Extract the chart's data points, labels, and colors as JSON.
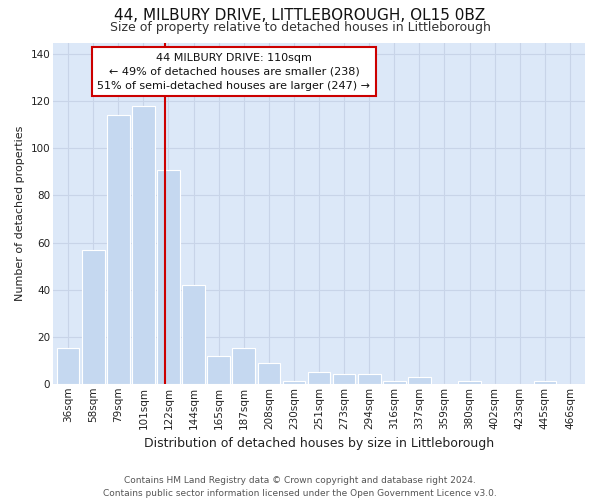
{
  "title": "44, MILBURY DRIVE, LITTLEBOROUGH, OL15 0BZ",
  "subtitle": "Size of property relative to detached houses in Littleborough",
  "xlabel": "Distribution of detached houses by size in Littleborough",
  "ylabel": "Number of detached properties",
  "categories": [
    "36sqm",
    "58sqm",
    "79sqm",
    "101sqm",
    "122sqm",
    "144sqm",
    "165sqm",
    "187sqm",
    "208sqm",
    "230sqm",
    "251sqm",
    "273sqm",
    "294sqm",
    "316sqm",
    "337sqm",
    "359sqm",
    "380sqm",
    "402sqm",
    "423sqm",
    "445sqm",
    "466sqm"
  ],
  "values": [
    15,
    57,
    114,
    118,
    91,
    42,
    12,
    15,
    9,
    1,
    5,
    4,
    4,
    1,
    3,
    0,
    1,
    0,
    0,
    1,
    0
  ],
  "bar_color": "#c5d8f0",
  "bar_edge_color": "#ffffff",
  "grid_color": "#c8d4e8",
  "plot_background_color": "#dce8f8",
  "figure_background_color": "#ffffff",
  "property_line_color": "#cc0000",
  "annotation_text": "44 MILBURY DRIVE: 110sqm\n← 49% of detached houses are smaller (238)\n51% of semi-detached houses are larger (247) →",
  "annotation_box_color": "#ffffff",
  "annotation_box_edge": "#cc0000",
  "footer": "Contains HM Land Registry data © Crown copyright and database right 2024.\nContains public sector information licensed under the Open Government Licence v3.0.",
  "ylim": [
    0,
    145
  ],
  "yticks": [
    0,
    20,
    40,
    60,
    80,
    100,
    120,
    140
  ],
  "title_fontsize": 11,
  "subtitle_fontsize": 9,
  "ylabel_fontsize": 8,
  "xlabel_fontsize": 9,
  "tick_fontsize": 7.5,
  "footer_fontsize": 6.5,
  "annotation_fontsize": 8,
  "line_x_index": 3.85
}
